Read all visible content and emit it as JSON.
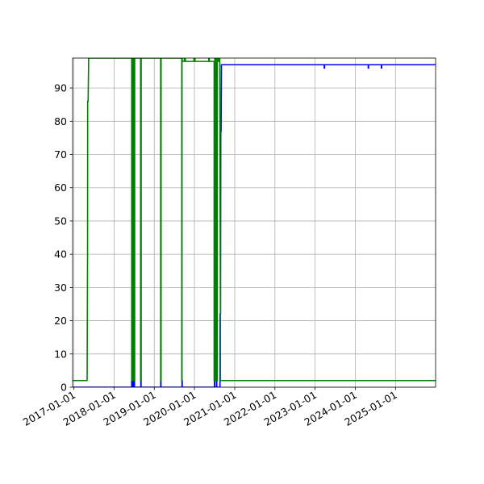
{
  "chart_data": {
    "type": "line",
    "title": "",
    "xlabel": "",
    "ylabel": "",
    "x_axis": "date",
    "xlim": [
      "2016-12-20",
      "2025-12-31"
    ],
    "ylim": [
      0,
      99
    ],
    "grid": true,
    "legend": "none",
    "xticks": [
      "2017-01-01",
      "2018-01-01",
      "2019-01-01",
      "2020-01-01",
      "2021-01-01",
      "2022-01-01",
      "2023-01-01",
      "2024-01-01",
      "2025-01-01"
    ],
    "yticks": [
      0,
      10,
      20,
      30,
      40,
      50,
      60,
      70,
      80,
      90
    ],
    "series": [
      {
        "color": "#0000ff",
        "x": [
          "2016-12-20",
          "2018-06-10",
          "2018-06-10",
          "2018-06-12",
          "2018-06-12",
          "2018-06-20",
          "2018-06-20",
          "2018-06-25",
          "2018-06-25",
          "2018-07-01",
          "2018-07-01",
          "2018-07-05",
          "2018-07-05",
          "2018-09-01",
          "2018-09-01",
          "2018-09-03",
          "2018-09-03",
          "2019-03-01",
          "2019-03-01",
          "2019-03-03",
          "2019-03-03",
          "2019-09-10",
          "2019-09-10",
          "2019-09-12",
          "2019-09-12",
          "2020-07-01",
          "2020-07-01",
          "2020-07-03",
          "2020-07-03",
          "2020-07-20",
          "2020-07-20",
          "2020-07-22",
          "2020-07-22",
          "2020-08-20",
          "2020-08-21",
          "2020-08-25",
          "2020-08-27",
          "2020-08-30",
          "2020-09-02",
          "2023-03-25",
          "2023-03-25",
          "2023-03-28",
          "2023-03-28",
          "2024-04-28",
          "2024-04-28",
          "2024-05-01",
          "2024-05-01",
          "2024-08-25",
          "2024-08-25",
          "2024-08-28",
          "2024-08-28",
          "2025-12-31"
        ],
        "y": [
          0,
          0,
          2,
          2,
          0,
          0,
          2,
          2,
          0,
          0,
          2,
          2,
          0,
          0,
          2,
          2,
          0,
          0,
          2,
          2,
          0,
          0,
          2,
          2,
          0,
          0,
          2,
          2,
          0,
          0,
          2,
          2,
          0,
          0,
          22,
          22,
          77,
          77,
          97,
          97,
          96,
          96,
          97,
          97,
          96,
          96,
          97,
          97,
          96,
          96,
          97,
          97
        ]
      },
      {
        "color": "#008000",
        "x": [
          "2016-12-20",
          "2017-05-01",
          "2017-05-05",
          "2017-05-06",
          "2017-05-10",
          "2017-05-15",
          "2018-06-10",
          "2018-06-10",
          "2018-06-14",
          "2018-06-14",
          "2018-06-18",
          "2018-06-18",
          "2018-06-22",
          "2018-06-22",
          "2018-06-26",
          "2018-06-26",
          "2018-06-30",
          "2018-06-30",
          "2018-07-04",
          "2018-07-04",
          "2018-07-07",
          "2018-07-07",
          "2018-08-30",
          "2018-08-30",
          "2018-09-04",
          "2018-09-04",
          "2019-02-28",
          "2019-02-28",
          "2019-03-04",
          "2019-03-04",
          "2019-09-08",
          "2019-09-08",
          "2019-09-10",
          "2019-09-10",
          "2019-09-12",
          "2019-09-12",
          "2019-10-01",
          "2019-10-01",
          "2019-10-10",
          "2019-10-10",
          "2019-12-28",
          "2019-12-28",
          "2020-01-06",
          "2020-01-06",
          "2020-05-10",
          "2020-05-10",
          "2020-05-15",
          "2020-05-15",
          "2020-06-28",
          "2020-06-28",
          "2020-07-04",
          "2020-07-04",
          "2020-07-10",
          "2020-07-10",
          "2020-07-16",
          "2020-07-16",
          "2020-07-22",
          "2020-07-22",
          "2020-07-27",
          "2020-07-27",
          "2020-08-05",
          "2020-08-05",
          "2020-08-12",
          "2020-08-12",
          "2020-08-18",
          "2020-08-24",
          "2020-08-24",
          "2025-12-31"
        ],
        "y": [
          2,
          2,
          40,
          86,
          86,
          99,
          99,
          2,
          2,
          99,
          99,
          2,
          2,
          99,
          99,
          2,
          2,
          99,
          99,
          2,
          2,
          99,
          99,
          2,
          2,
          99,
          99,
          2,
          2,
          99,
          99,
          2,
          2,
          99,
          99,
          98,
          98,
          99,
          99,
          98,
          98,
          99,
          99,
          98,
          98,
          99,
          99,
          98,
          98,
          2,
          2,
          99,
          99,
          2,
          2,
          99,
          99,
          2,
          2,
          99,
          99,
          98,
          98,
          99,
          99,
          22,
          2,
          2
        ]
      }
    ]
  }
}
